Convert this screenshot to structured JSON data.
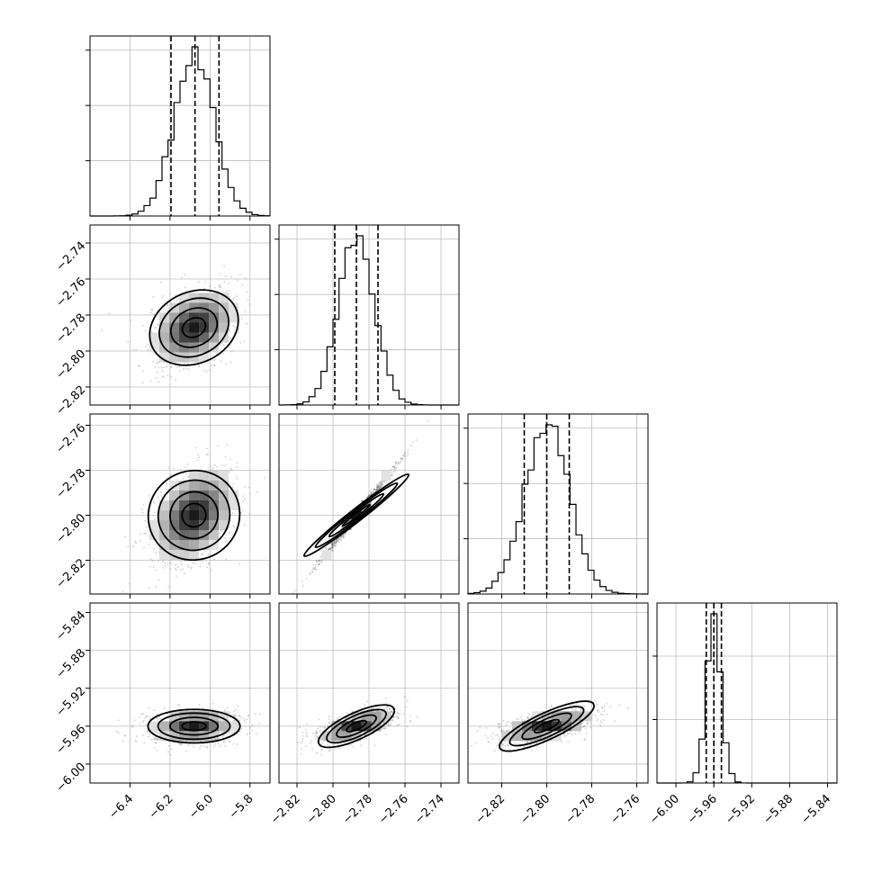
{
  "chart_data": {
    "type": "corner",
    "parameters": [
      {
        "range": [
          -6.6,
          -5.7
        ],
        "ticks": [
          -6.4,
          -6.2,
          -6.0,
          -5.8
        ],
        "tick_labels": [
          "−6.4",
          "−6.2",
          "−6.0",
          "−5.8"
        ],
        "mean": -6.08,
        "sd": 0.1,
        "quantiles": [
          -6.195,
          -6.075,
          -5.955
        ],
        "hist_ticks": [
          0.33,
          0.66,
          0.99
        ]
      },
      {
        "range": [
          -2.83,
          -2.73
        ],
        "ticks": [
          -2.82,
          -2.8,
          -2.78,
          -2.76,
          -2.74
        ],
        "tick_labels": [
          "−2.82",
          "−2.80",
          "−2.78",
          "−2.76",
          "−2.74"
        ],
        "mean": -2.787,
        "sd": 0.01,
        "quantiles": [
          -2.799,
          -2.787,
          -2.775
        ],
        "hist_ticks": [
          0.33,
          0.66,
          0.99
        ]
      },
      {
        "range": [
          -2.835,
          -2.755
        ],
        "ticks": [
          -2.82,
          -2.8,
          -2.78,
          -2.76
        ],
        "tick_labels": [
          "−2.82",
          "−2.80",
          "−2.78",
          "−2.76"
        ],
        "mean": -2.8,
        "sd": 0.01,
        "quantiles": [
          -2.81,
          -2.8,
          -2.79
        ],
        "hist_ticks": [
          0.33,
          0.66,
          0.99
        ]
      },
      {
        "range": [
          -6.02,
          -5.83
        ],
        "ticks": [
          -6.0,
          -5.96,
          -5.92,
          -5.88,
          -5.84
        ],
        "tick_labels": [
          "−6.00",
          "−5.96",
          "−5.92",
          "−5.88",
          "−5.84"
        ],
        "mean": -5.96,
        "sd": 0.008,
        "quantiles": [
          -5.968,
          -5.96,
          -5.952
        ],
        "hist_ticks": [
          0.5,
          1.0
        ]
      }
    ],
    "correlations": [
      [
        1.0,
        0.35,
        0.35,
        0.1
      ],
      [
        0.35,
        1.0,
        0.995,
        0.6
      ],
      [
        0.35,
        0.995,
        1.0,
        0.6
      ],
      [
        0.1,
        0.6,
        0.6,
        1.0
      ]
    ],
    "colors": {
      "line": "#000000",
      "grid": "#bdbdbd",
      "points": "#707070"
    },
    "grid": true
  }
}
